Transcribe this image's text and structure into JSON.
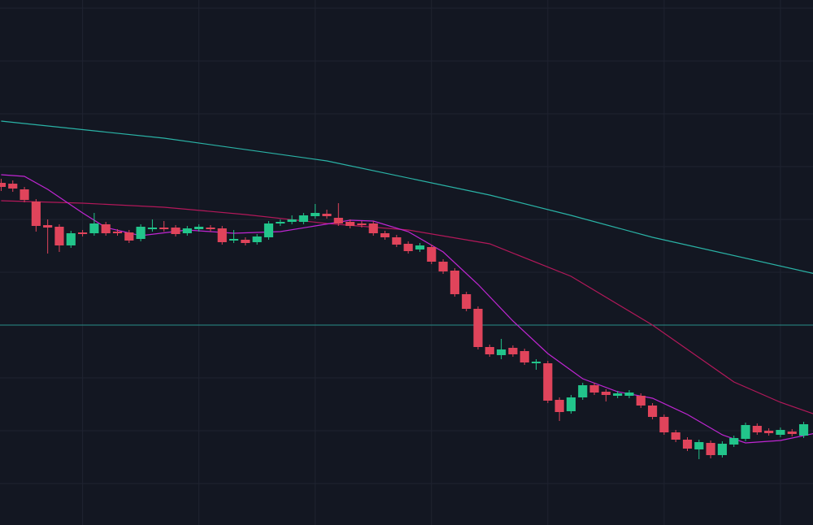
{
  "chart_data": {
    "type": "candlestick",
    "background": "#131722",
    "grid": true,
    "grid_color": "#1f2330",
    "up_color": "#22c58b",
    "down_color": "#e0445b",
    "xlim": [
      -0.1,
      69.8
    ],
    "ylim": [
      0,
      646
    ],
    "xticks": [
      7,
      17,
      27,
      37,
      47,
      57,
      67
    ],
    "yticks": [
      51,
      116,
      181,
      246,
      311,
      376,
      441,
      506,
      571,
      636
    ],
    "price_line": {
      "value": 246,
      "color": "#2a8f8a"
    },
    "open": [
      421,
      420,
      413,
      398,
      369,
      367,
      344,
      360,
      359,
      370,
      361,
      360,
      352,
      364,
      366,
      366,
      359,
      364,
      366,
      365,
      350,
      351,
      348,
      354,
      371,
      373,
      373,
      380,
      383,
      378,
      373,
      371,
      371,
      359,
      354,
      346,
      339,
      342,
      324,
      313,
      284,
      266,
      219,
      209,
      218,
      214,
      199,
      199,
      154,
      140,
      157,
      172,
      164,
      159,
      159,
      159,
      147,
      133,
      114,
      105,
      93,
      101,
      86,
      99,
      106,
      122,
      116,
      111,
      115,
      110
    ],
    "high": [
      426,
      424,
      416,
      401,
      376,
      370,
      362,
      363,
      384,
      373,
      364,
      363,
      370,
      376,
      374,
      369,
      368,
      370,
      369,
      368,
      363,
      354,
      358,
      374,
      376,
      381,
      384,
      395,
      388,
      396,
      376,
      374,
      374,
      362,
      357,
      349,
      347,
      345,
      327,
      316,
      287,
      269,
      222,
      229,
      221,
      217,
      204,
      202,
      157,
      160,
      175,
      175,
      167,
      165,
      166,
      162,
      150,
      136,
      117,
      108,
      105,
      104,
      103,
      110,
      126,
      125,
      119,
      120,
      118,
      127
    ],
    "low": [
      411,
      410,
      397,
      361,
      334,
      336,
      341,
      355,
      356,
      356,
      356,
      347,
      349,
      361,
      361,
      355,
      356,
      361,
      361,
      345,
      347,
      344,
      345,
      351,
      368,
      370,
      370,
      377,
      377,
      368,
      365,
      366,
      356,
      351,
      342,
      334,
      336,
      321,
      309,
      281,
      263,
      216,
      207,
      204,
      207,
      197,
      191,
      150,
      128,
      137,
      154,
      160,
      152,
      156,
      156,
      144,
      130,
      111,
      102,
      91,
      81,
      82,
      83,
      96,
      103,
      111,
      110,
      108,
      109,
      107
    ],
    "close": [
      416,
      414,
      400,
      368,
      366,
      344,
      359,
      358,
      371,
      359,
      359,
      350,
      367,
      366,
      364,
      358,
      365,
      367,
      364,
      348,
      352,
      347,
      355,
      371,
      373,
      376,
      381,
      384,
      380,
      371,
      368,
      369,
      359,
      354,
      345,
      337,
      344,
      324,
      312,
      284,
      266,
      219,
      210,
      216,
      210,
      200,
      201,
      153,
      139,
      157,
      172,
      163,
      160,
      162,
      163,
      147,
      133,
      114,
      105,
      94,
      102,
      86,
      100,
      107,
      123,
      114,
      113,
      117,
      112,
      124
    ],
    "series": [
      {
        "color": "#2ab3a6",
        "x": [
          0,
          14,
          28,
          42,
          49,
          56,
          70
        ],
        "values": [
          497,
          476,
          448,
          406,
          381,
          354,
          309
        ]
      },
      {
        "color": "#b3185a",
        "x": [
          0,
          7,
          14,
          21,
          28,
          35,
          42,
          49,
          56,
          63,
          67,
          70
        ],
        "values": [
          399,
          396,
          391,
          382,
          371,
          363,
          346,
          306,
          246,
          176,
          151,
          136
        ]
      },
      {
        "color": "#c026d3",
        "x": [
          0,
          2,
          4,
          7,
          9,
          12,
          16,
          20,
          24,
          27,
          30,
          32,
          35,
          38,
          41,
          44,
          47,
          50,
          53,
          56,
          59,
          62,
          64,
          67,
          70
        ],
        "values": [
          431,
          429,
          413,
          384,
          366,
          356,
          363,
          359,
          361,
          368,
          375,
          374,
          361,
          336,
          296,
          251,
          211,
          180,
          164,
          156,
          136,
          111,
          101,
          104,
          113
        ]
      }
    ]
  }
}
